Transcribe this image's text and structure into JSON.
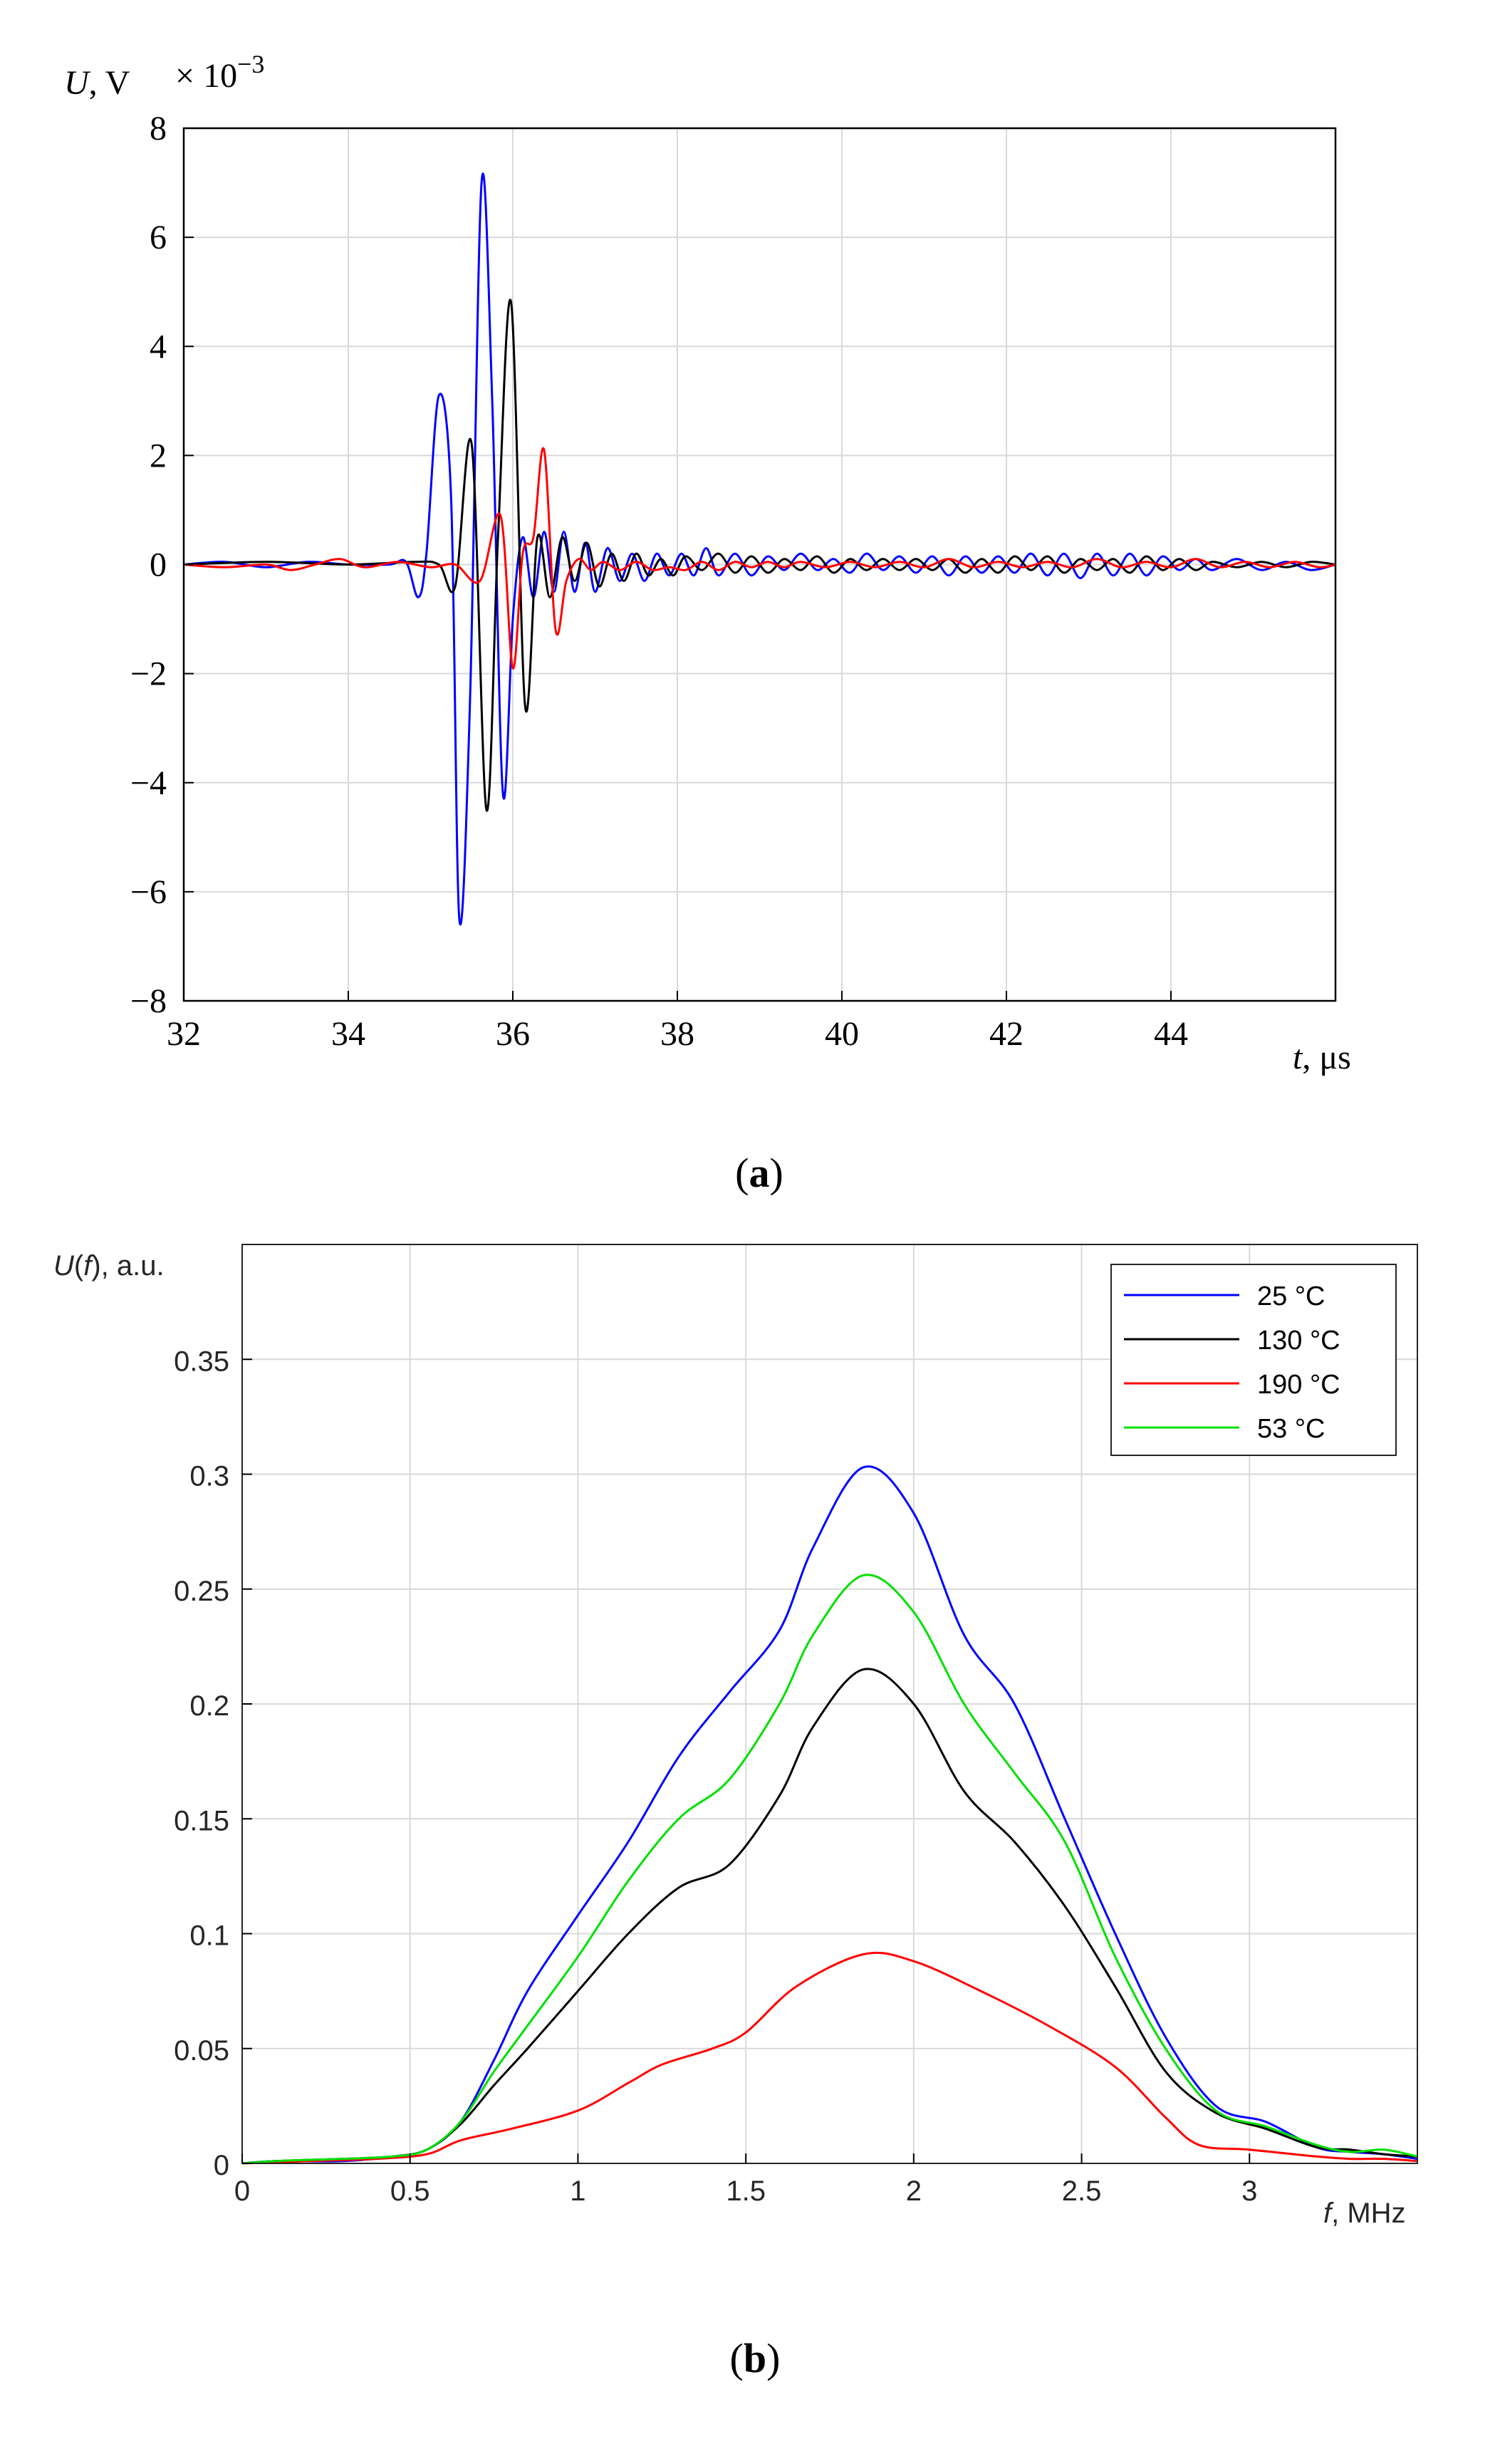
{
  "chart_data": [
    {
      "panel": "a",
      "type": "line",
      "caption_letter": "a",
      "caption_open": "(",
      "caption_close": ")",
      "ylabel_var": "U",
      "ylabel_unit": ", V",
      "exponent_base": "× 10",
      "exponent_power": "−3",
      "xlabel_var": "t",
      "xlabel_unit": ", μs",
      "xlim": [
        32,
        46
      ],
      "ylim": [
        -8,
        8
      ],
      "xticks": [
        32,
        34,
        36,
        38,
        40,
        42,
        44
      ],
      "xtick_labels": [
        "32",
        "34",
        "36",
        "38",
        "40",
        "42",
        "44"
      ],
      "yticks": [
        -8,
        -6,
        -4,
        -2,
        0,
        2,
        4,
        6,
        8
      ],
      "ytick_labels": [
        "−8",
        "−6",
        "−4",
        "−2",
        "0",
        "2",
        "4",
        "6",
        "8"
      ],
      "grid": true,
      "series": [
        {
          "name": "blue",
          "color": "#0000ff",
          "x": [
            32,
            32.5,
            33,
            33.5,
            34,
            34.5,
            34.7,
            34.85,
            34.95,
            35.1,
            35.25,
            35.35,
            35.48,
            35.62,
            35.75,
            35.88,
            36.0,
            36.12,
            36.25,
            36.38,
            36.5,
            36.62,
            36.75,
            36.88,
            37.0,
            37.15,
            37.3,
            37.45,
            37.6,
            37.75,
            37.9,
            38.05,
            38.2,
            38.35,
            38.5,
            38.7,
            38.9,
            39.1,
            39.3,
            39.5,
            39.7,
            39.9,
            40.1,
            40.3,
            40.5,
            40.7,
            40.9,
            41.1,
            41.3,
            41.5,
            41.7,
            41.9,
            42.1,
            42.3,
            42.5,
            42.7,
            42.9,
            43.1,
            43.3,
            43.5,
            43.7,
            43.9,
            44.1,
            44.3,
            44.5,
            44.8,
            45.1,
            45.4,
            45.7,
            46
          ],
          "y": [
            0,
            0.05,
            -0.05,
            0.05,
            0,
            0,
            0.05,
            -0.6,
            0.2,
            3.1,
            1.2,
            -6.5,
            -2.5,
            7.0,
            3.0,
            -4.2,
            -1.0,
            0.5,
            -0.6,
            0.6,
            -0.5,
            0.6,
            -0.5,
            0.4,
            -0.5,
            0.3,
            -0.3,
            0.2,
            -0.3,
            0.2,
            -0.2,
            0.2,
            -0.2,
            0.3,
            -0.2,
            0.2,
            -0.2,
            0.15,
            -0.1,
            0.2,
            -0.1,
            0.1,
            -0.15,
            0.2,
            -0.1,
            0.15,
            -0.15,
            0.15,
            -0.2,
            0.15,
            -0.15,
            0.15,
            -0.15,
            0.2,
            -0.2,
            0.2,
            -0.25,
            0.2,
            -0.2,
            0.2,
            -0.2,
            0.15,
            -0.1,
            0.1,
            -0.1,
            0.1,
            -0.1,
            0.05,
            -0.1,
            0
          ]
        },
        {
          "name": "black",
          "color": "#000000",
          "x": [
            32,
            33,
            34,
            34.8,
            35.1,
            35.3,
            35.5,
            35.68,
            35.82,
            35.98,
            36.15,
            36.3,
            36.45,
            36.6,
            36.75,
            36.9,
            37.05,
            37.2,
            37.35,
            37.5,
            37.65,
            37.8,
            37.95,
            38.1,
            38.3,
            38.5,
            38.7,
            38.9,
            39.1,
            39.3,
            39.5,
            39.7,
            39.9,
            40.1,
            40.3,
            40.5,
            40.7,
            40.9,
            41.1,
            41.3,
            41.5,
            41.7,
            41.9,
            42.1,
            42.3,
            42.5,
            42.7,
            42.9,
            43.1,
            43.3,
            43.5,
            43.7,
            43.9,
            44.1,
            44.3,
            44.5,
            44.8,
            45.1,
            45.4,
            45.7,
            46
          ],
          "y": [
            0,
            0.05,
            0,
            0.05,
            0,
            -0.4,
            2.2,
            -4.5,
            0.5,
            4.8,
            -2.6,
            0.5,
            -0.6,
            0.5,
            -0.3,
            0.4,
            -0.4,
            0.2,
            -0.3,
            0.2,
            -0.2,
            0.1,
            -0.2,
            0.15,
            -0.1,
            0.2,
            -0.15,
            0.15,
            -0.15,
            0.1,
            -0.1,
            0.15,
            -0.15,
            0.1,
            -0.1,
            0.1,
            -0.1,
            0.1,
            -0.1,
            0.1,
            -0.15,
            0.1,
            -0.15,
            0.15,
            -0.1,
            0.15,
            -0.15,
            0.1,
            -0.1,
            0.1,
            -0.15,
            0.15,
            -0.1,
            0.1,
            -0.1,
            0.05,
            -0.05,
            0.05,
            -0.05,
            0.05,
            0
          ]
        },
        {
          "name": "red",
          "color": "#ff0000",
          "x": [
            32,
            32.5,
            33,
            33.3,
            33.6,
            33.9,
            34.2,
            34.6,
            35.0,
            35.3,
            35.6,
            35.85,
            36.0,
            36.12,
            36.25,
            36.38,
            36.52,
            36.65,
            36.8,
            36.95,
            37.1,
            37.3,
            37.5,
            37.7,
            37.9,
            38.1,
            38.3,
            38.5,
            38.7,
            38.9,
            39.1,
            39.3,
            39.5,
            39.8,
            40.1,
            40.4,
            40.7,
            41.0,
            41.3,
            41.6,
            41.9,
            42.2,
            42.5,
            42.8,
            43.1,
            43.4,
            43.7,
            44.0,
            44.3,
            44.6,
            44.9,
            45.2,
            45.5,
            45.8,
            46
          ],
          "y": [
            0,
            -0.05,
            0,
            -0.1,
            0,
            0.1,
            -0.05,
            0.05,
            -0.05,
            0,
            -0.3,
            0.9,
            -1.9,
            0.2,
            0.5,
            2.1,
            -1.2,
            -0.3,
            0.1,
            -0.1,
            0.05,
            -0.1,
            0.05,
            -0.1,
            -0.05,
            -0.1,
            0.05,
            -0.1,
            0.05,
            -0.05,
            0.05,
            -0.05,
            0.05,
            -0.05,
            0.05,
            -0.05,
            0.05,
            -0.05,
            0.1,
            -0.05,
            0.05,
            -0.05,
            0.05,
            -0.05,
            0.1,
            -0.05,
            0.05,
            -0.05,
            0.1,
            -0.05,
            0.05,
            -0.05,
            0.05,
            -0.05,
            0
          ]
        }
      ]
    },
    {
      "panel": "b",
      "type": "line",
      "caption_letter": "b",
      "caption_open": "(",
      "caption_close": ")",
      "ylabel_var": "U",
      "ylabel_arg": "f",
      "ylabel_open": "(",
      "ylabel_close": ")",
      "ylabel_unit": ", a.u.",
      "xlabel_var": "f",
      "xlabel_unit": ", MHz",
      "xlim": [
        0,
        3.5
      ],
      "ylim": [
        0,
        0.4
      ],
      "xticks": [
        0,
        0.5,
        1,
        1.5,
        2,
        2.5,
        3
      ],
      "xtick_labels": [
        "0",
        "0.5",
        "1",
        "1.5",
        "2",
        "2.5",
        "3"
      ],
      "yticks": [
        0,
        0.05,
        0.1,
        0.15,
        0.2,
        0.25,
        0.3,
        0.35
      ],
      "ytick_labels": [
        "0",
        "0.05",
        "0.1",
        "0.15",
        "0.2",
        "0.25",
        "0.3",
        "0.35"
      ],
      "grid": true,
      "legend_position": "top-right",
      "series": [
        {
          "name": "25 °C",
          "color": "#0000ff",
          "x": [
            0,
            0.1,
            0.3,
            0.45,
            0.55,
            0.65,
            0.75,
            0.85,
            1.0,
            1.15,
            1.3,
            1.45,
            1.6,
            1.7,
            1.85,
            2.0,
            2.15,
            2.3,
            2.45,
            2.6,
            2.75,
            2.9,
            3.05,
            3.2,
            3.3,
            3.4,
            3.5
          ],
          "y": [
            0,
            0.001,
            0.001,
            0.003,
            0.006,
            0.018,
            0.045,
            0.075,
            0.108,
            0.14,
            0.177,
            0.205,
            0.232,
            0.268,
            0.303,
            0.283,
            0.23,
            0.2,
            0.15,
            0.1,
            0.055,
            0.025,
            0.018,
            0.007,
            0.005,
            0.004,
            0.002
          ]
        },
        {
          "name": "130 °C",
          "color": "#000000",
          "x": [
            0,
            0.1,
            0.3,
            0.45,
            0.55,
            0.65,
            0.75,
            0.85,
            1.0,
            1.15,
            1.3,
            1.45,
            1.6,
            1.7,
            1.85,
            2.0,
            2.15,
            2.3,
            2.45,
            2.6,
            2.75,
            2.9,
            3.05,
            3.2,
            3.3,
            3.4,
            3.5
          ],
          "y": [
            0,
            0.001,
            0.002,
            0.003,
            0.006,
            0.017,
            0.034,
            0.05,
            0.075,
            0.1,
            0.12,
            0.13,
            0.16,
            0.19,
            0.215,
            0.2,
            0.162,
            0.14,
            0.112,
            0.077,
            0.04,
            0.022,
            0.015,
            0.007,
            0.006,
            0.004,
            0.003
          ]
        },
        {
          "name": "190 °C",
          "color": "#ff0000",
          "x": [
            0,
            0.2,
            0.4,
            0.55,
            0.65,
            0.8,
            1.0,
            1.15,
            1.25,
            1.4,
            1.5,
            1.65,
            1.85,
            2.0,
            2.2,
            2.4,
            2.6,
            2.75,
            2.85,
            3.0,
            3.2,
            3.3,
            3.4,
            3.5
          ],
          "y": [
            0,
            0.001,
            0.002,
            0.004,
            0.01,
            0.015,
            0.023,
            0.035,
            0.043,
            0.05,
            0.057,
            0.077,
            0.091,
            0.088,
            0.075,
            0.06,
            0.042,
            0.02,
            0.008,
            0.006,
            0.003,
            0.002,
            0.002,
            0.001
          ]
        },
        {
          "name": "53 °C",
          "color": "#00e000",
          "x": [
            0,
            0.1,
            0.3,
            0.45,
            0.55,
            0.65,
            0.75,
            0.85,
            1.0,
            1.15,
            1.3,
            1.45,
            1.6,
            1.7,
            1.85,
            2.0,
            2.15,
            2.3,
            2.45,
            2.6,
            2.75,
            2.9,
            3.05,
            3.2,
            3.3,
            3.4,
            3.5
          ],
          "y": [
            0,
            0.001,
            0.002,
            0.003,
            0.006,
            0.018,
            0.04,
            0.06,
            0.09,
            0.123,
            0.15,
            0.167,
            0.2,
            0.23,
            0.256,
            0.24,
            0.2,
            0.17,
            0.14,
            0.09,
            0.05,
            0.023,
            0.016,
            0.008,
            0.005,
            0.006,
            0.003
          ]
        }
      ]
    }
  ]
}
